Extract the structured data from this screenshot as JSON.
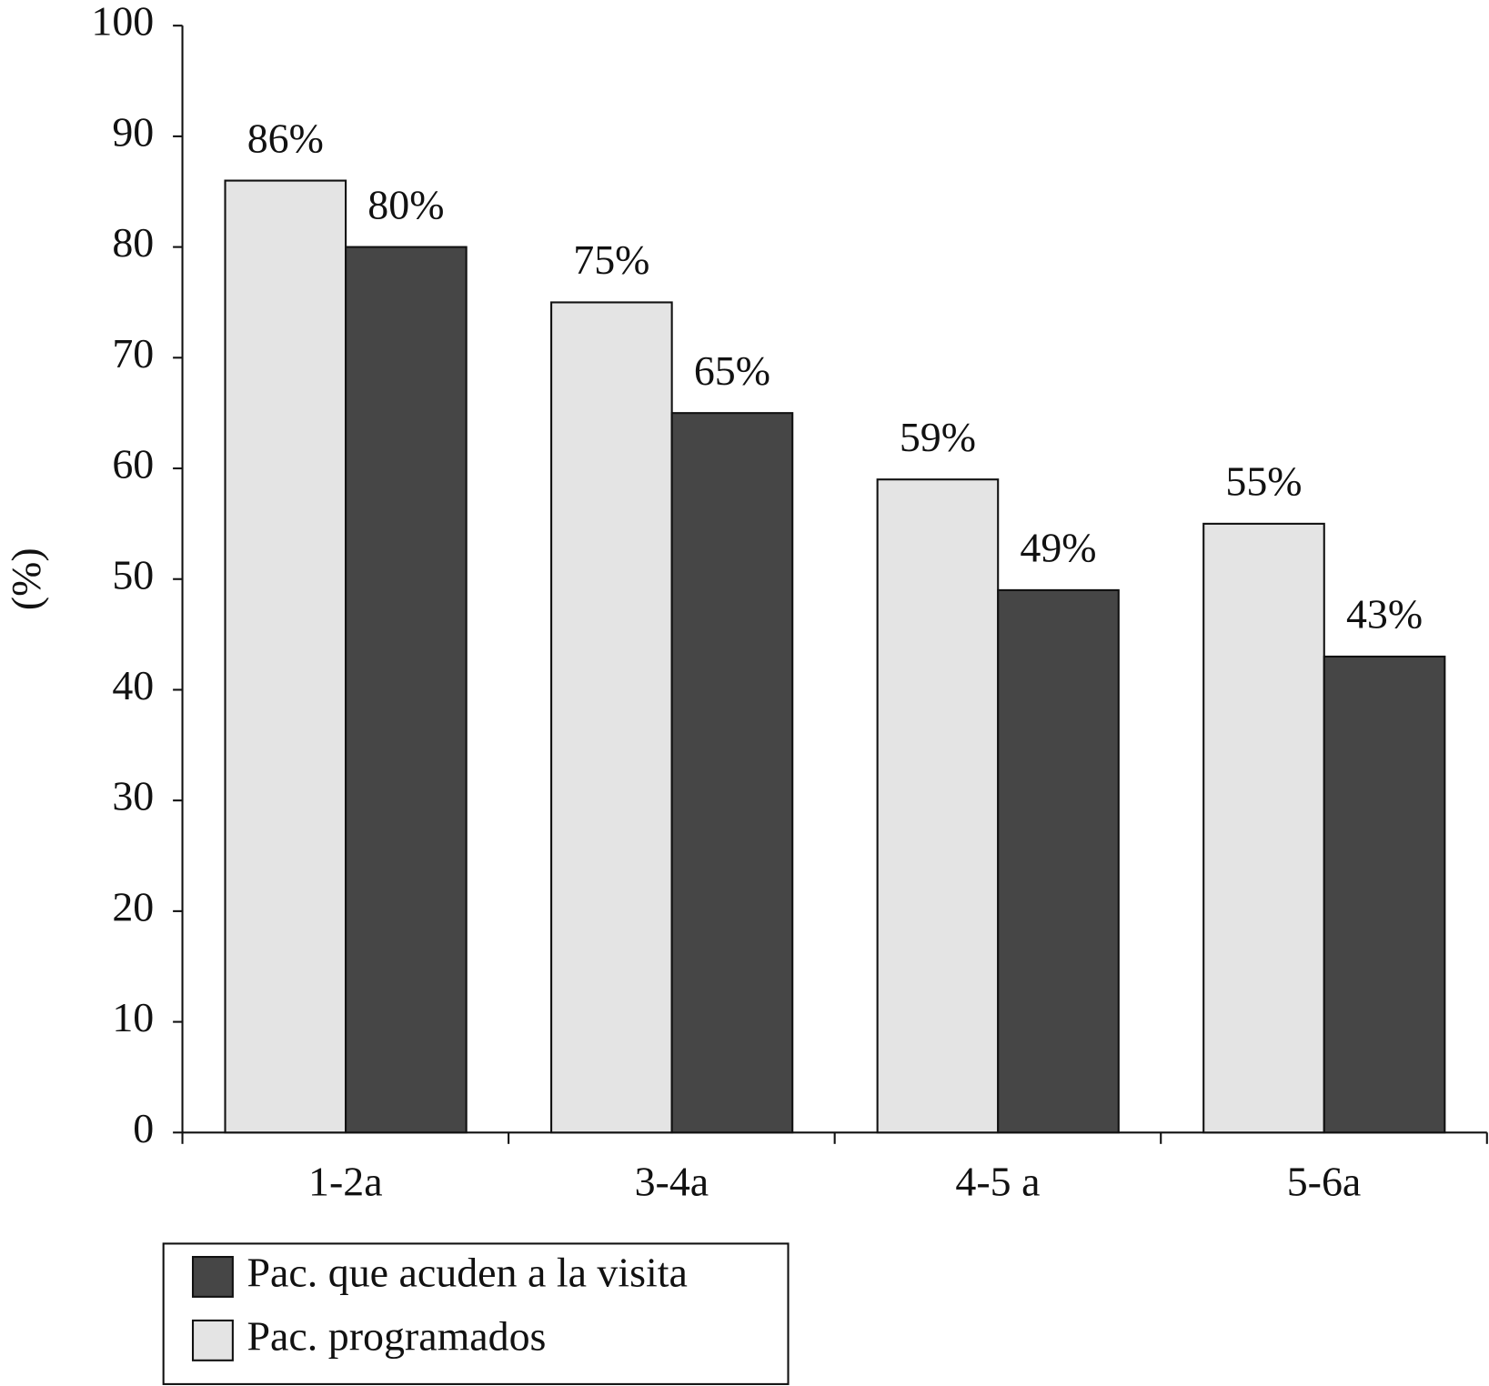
{
  "chart_data": {
    "type": "bar",
    "ylabel": "(%)",
    "categories": [
      "1-2a",
      "3-4a",
      "4-5 a",
      "5-6a"
    ],
    "series": [
      {
        "name": "Pac. programados",
        "color": "#e4e4e4",
        "values": [
          86,
          75,
          59,
          55
        ],
        "value_labels": [
          "86%",
          "75%",
          "59%",
          "55%"
        ]
      },
      {
        "name": "Pac. que acuden a la visita",
        "color": "#464646",
        "values": [
          80,
          65,
          49,
          43
        ],
        "value_labels": [
          "80%",
          "65%",
          "49%",
          "43%"
        ]
      }
    ],
    "ylim": [
      0,
      100
    ],
    "yticks": [
      0,
      10,
      20,
      30,
      40,
      50,
      60,
      70,
      80,
      90,
      100
    ],
    "grid": false
  }
}
